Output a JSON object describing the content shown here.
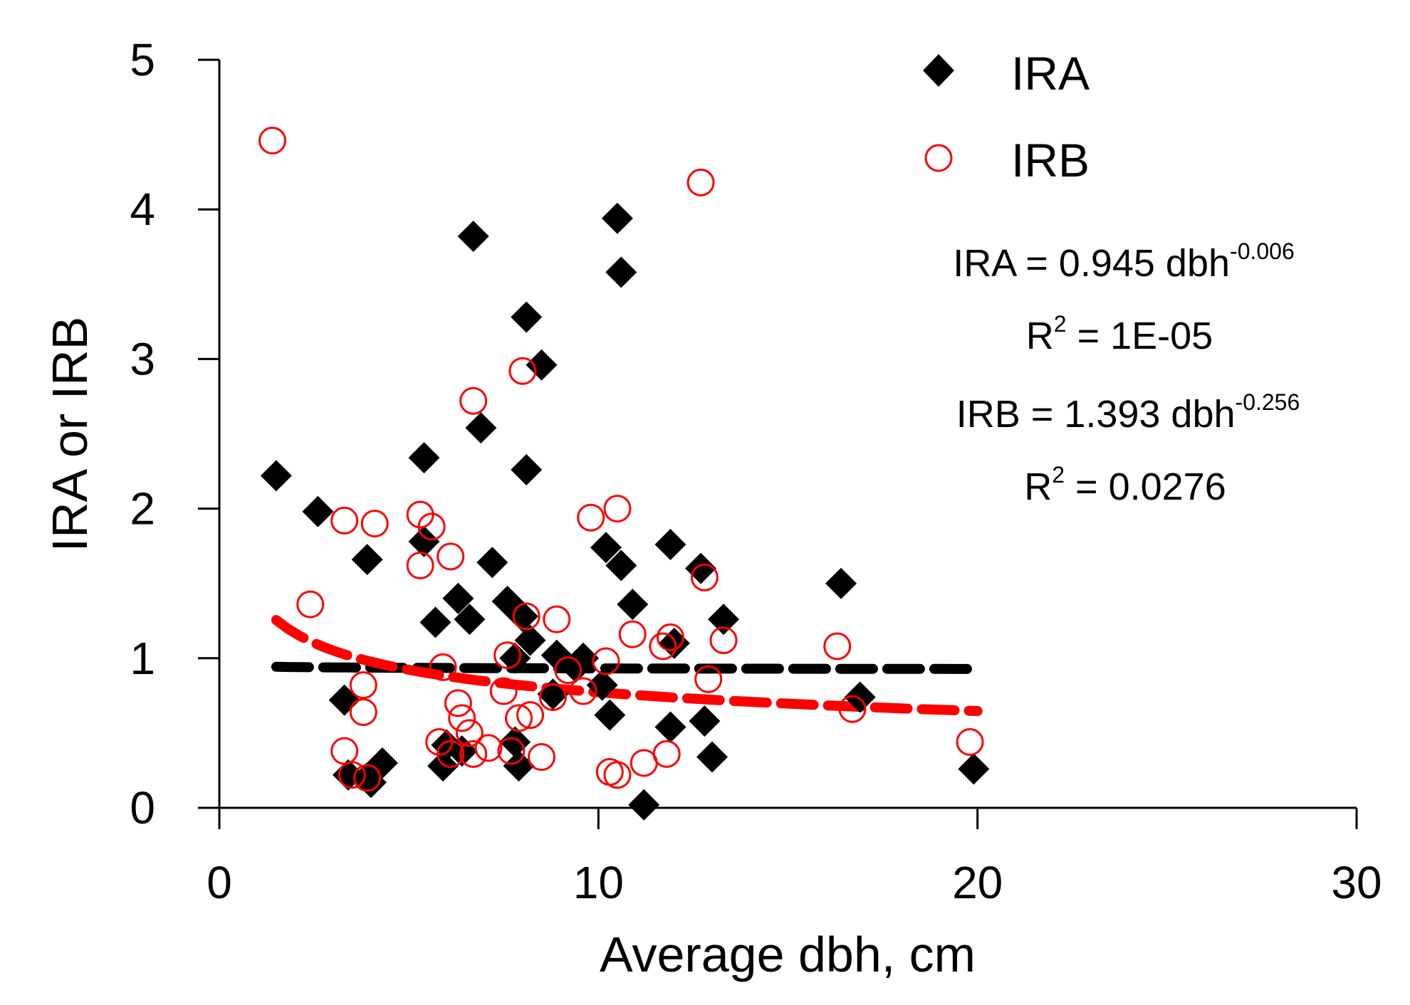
{
  "chart_data": {
    "type": "scatter",
    "title": "",
    "xlabel": "Average dbh, cm",
    "ylabel": "IRA or IRB",
    "xlim": [
      0,
      30
    ],
    "ylim": [
      0,
      5
    ],
    "xticks": [
      0,
      10,
      20,
      30
    ],
    "yticks": [
      0,
      1,
      2,
      3,
      4,
      5
    ],
    "grid": false,
    "legend_position": "top-right",
    "series": [
      {
        "name": "IRA",
        "marker": "diamond",
        "color": "#000000",
        "points": [
          [
            1.5,
            2.22
          ],
          [
            2.6,
            1.98
          ],
          [
            3.3,
            0.72
          ],
          [
            3.4,
            0.22
          ],
          [
            3.9,
            1.66
          ],
          [
            3.9,
            0.2
          ],
          [
            4.0,
            0.17
          ],
          [
            4.3,
            0.3
          ],
          [
            5.4,
            2.34
          ],
          [
            5.4,
            1.78
          ],
          [
            5.7,
            1.24
          ],
          [
            5.9,
            0.28
          ],
          [
            6.0,
            0.42
          ],
          [
            6.3,
            1.4
          ],
          [
            6.4,
            0.38
          ],
          [
            6.6,
            1.26
          ],
          [
            6.7,
            3.82
          ],
          [
            6.9,
            2.54
          ],
          [
            7.2,
            1.64
          ],
          [
            7.6,
            1.38
          ],
          [
            7.8,
            1.0
          ],
          [
            7.8,
            0.44
          ],
          [
            7.9,
            0.28
          ],
          [
            8.0,
            1.28
          ],
          [
            8.1,
            3.28
          ],
          [
            8.1,
            2.26
          ],
          [
            8.2,
            1.12
          ],
          [
            8.5,
            2.96
          ],
          [
            8.8,
            0.76
          ],
          [
            8.9,
            1.02
          ],
          [
            9.4,
            0.94
          ],
          [
            9.6,
            1.0
          ],
          [
            10.1,
            0.82
          ],
          [
            10.2,
            1.74
          ],
          [
            10.3,
            0.62
          ],
          [
            10.5,
            3.94
          ],
          [
            10.6,
            3.58
          ],
          [
            10.6,
            1.62
          ],
          [
            10.9,
            1.36
          ],
          [
            11.2,
            0.02
          ],
          [
            11.9,
            1.76
          ],
          [
            11.9,
            0.54
          ],
          [
            12.0,
            1.1
          ],
          [
            12.7,
            1.6
          ],
          [
            12.8,
            0.58
          ],
          [
            13.0,
            0.34
          ],
          [
            13.3,
            1.26
          ],
          [
            16.4,
            1.5
          ],
          [
            16.9,
            0.74
          ],
          [
            19.9,
            0.26
          ]
        ],
        "fit": {
          "type": "power",
          "a": 0.945,
          "b": -0.006,
          "x_range": [
            1.5,
            20
          ],
          "color": "#000000",
          "equation": "IRA = 0.945 dbh",
          "exponent": "-0.006",
          "r2_prefix": "R",
          "r2_sup": "2",
          "r2_value": " = 1E-05"
        }
      },
      {
        "name": "IRB",
        "marker": "open-circle",
        "color": "#ff0000",
        "points": [
          [
            1.4,
            4.46
          ],
          [
            2.4,
            1.36
          ],
          [
            3.3,
            1.92
          ],
          [
            3.3,
            0.38
          ],
          [
            3.5,
            0.22
          ],
          [
            3.8,
            0.82
          ],
          [
            3.8,
            0.64
          ],
          [
            3.9,
            0.2
          ],
          [
            4.1,
            1.9
          ],
          [
            5.3,
            1.96
          ],
          [
            5.3,
            1.62
          ],
          [
            5.6,
            1.88
          ],
          [
            5.8,
            0.44
          ],
          [
            5.9,
            0.94
          ],
          [
            6.1,
            1.68
          ],
          [
            6.1,
            0.36
          ],
          [
            6.3,
            0.7
          ],
          [
            6.4,
            0.6
          ],
          [
            6.6,
            0.5
          ],
          [
            6.7,
            0.36
          ],
          [
            6.7,
            2.72
          ],
          [
            7.1,
            0.4
          ],
          [
            7.5,
            0.78
          ],
          [
            7.6,
            1.02
          ],
          [
            7.7,
            0.38
          ],
          [
            7.9,
            0.6
          ],
          [
            8.0,
            2.92
          ],
          [
            8.1,
            1.28
          ],
          [
            8.2,
            0.62
          ],
          [
            8.5,
            0.34
          ],
          [
            8.8,
            0.74
          ],
          [
            8.9,
            1.26
          ],
          [
            9.2,
            0.92
          ],
          [
            9.6,
            0.78
          ],
          [
            9.8,
            1.94
          ],
          [
            10.2,
            0.98
          ],
          [
            10.3,
            0.24
          ],
          [
            10.5,
            0.22
          ],
          [
            10.5,
            2.0
          ],
          [
            10.9,
            1.16
          ],
          [
            11.2,
            0.3
          ],
          [
            11.7,
            1.08
          ],
          [
            11.8,
            0.36
          ],
          [
            11.9,
            1.14
          ],
          [
            12.7,
            4.18
          ],
          [
            12.8,
            1.54
          ],
          [
            12.9,
            0.86
          ],
          [
            13.3,
            1.12
          ],
          [
            16.3,
            1.08
          ],
          [
            16.7,
            0.66
          ],
          [
            19.8,
            0.44
          ]
        ],
        "fit": {
          "type": "power",
          "a": 1.393,
          "b": -0.256,
          "x_range": [
            1.5,
            20
          ],
          "color": "#ff0000",
          "equation": "IRB = 1.393 dbh",
          "exponent": "-0.256",
          "r2_prefix": "R",
          "r2_sup": "2",
          "r2_value": " = 0.0276"
        }
      }
    ]
  }
}
